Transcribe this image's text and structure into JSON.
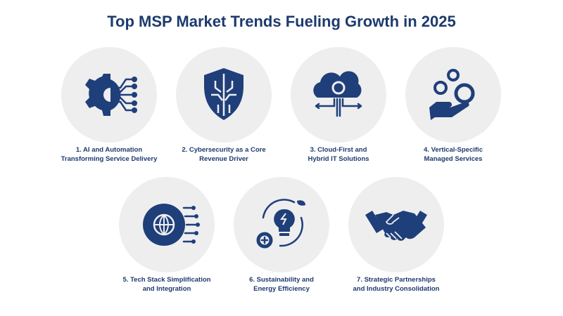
{
  "title": "Top MSP Market Trends Fueling Growth in 2025",
  "items": [
    {
      "lines": [
        "1. AI and Automation",
        "Transforming Service Delivery"
      ]
    },
    {
      "lines": [
        "2. Cybersecurity as a Core",
        "Revenue Driver"
      ]
    },
    {
      "lines": [
        "3. Cloud-First and",
        "Hybrid IT Solutions"
      ]
    },
    {
      "lines": [
        "4. Vertical-Specific",
        "Managed Services"
      ]
    },
    {
      "lines": [
        "5. Tech Stack Simplification",
        "and Integration"
      ]
    },
    {
      "lines": [
        "6. Sustainability and",
        "Energy Efficiency"
      ]
    },
    {
      "lines": [
        "7. Strategic Partnerships",
        "and Industry Consolidation"
      ]
    }
  ]
}
